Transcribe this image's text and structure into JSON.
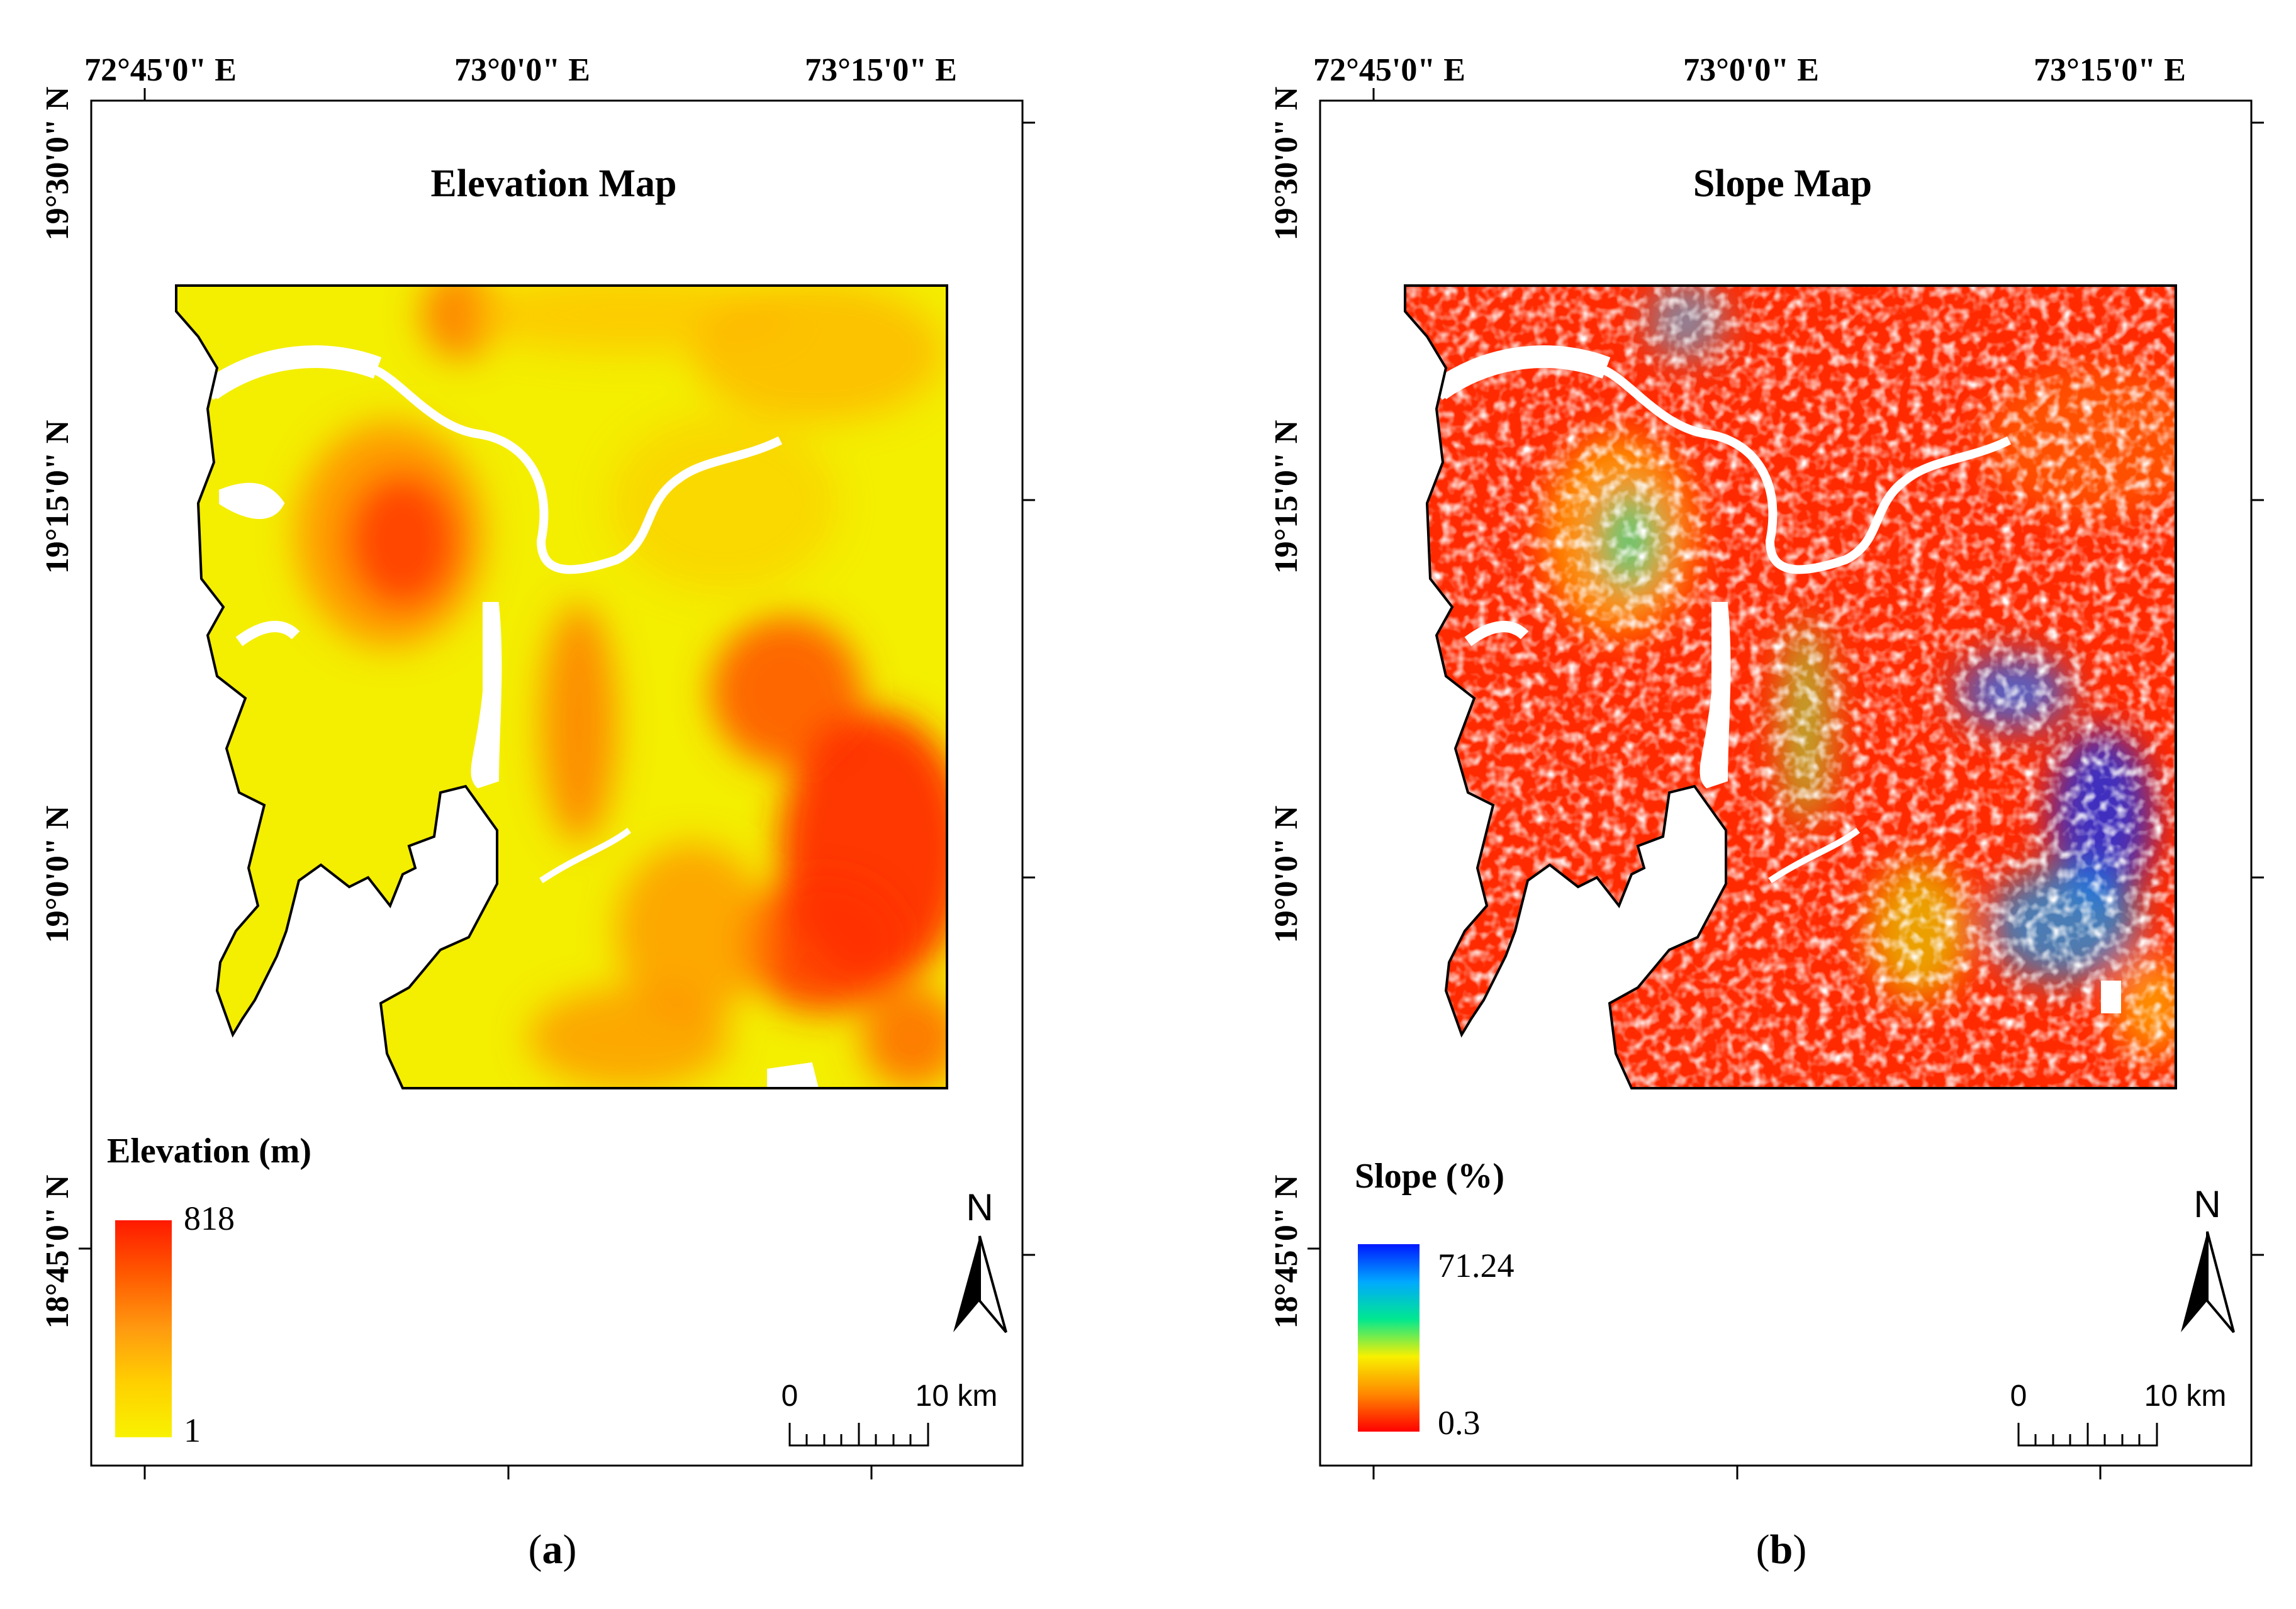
{
  "panels": [
    {
      "id": "a",
      "title": "Elevation Map",
      "caption_letter": "a",
      "longitude_labels": [
        "72°45'0\" E",
        "73°0'0\" E",
        "73°15'0\" E"
      ],
      "latitude_labels": [
        "19°30'0\" N",
        "19°15'0\" N",
        "19°0'0\" N",
        "18°45'0\" N"
      ],
      "legend": {
        "title": "Elevation (m)",
        "max_label": "818",
        "min_label": "1",
        "max_value": 818,
        "min_value": 1,
        "colors": [
          "#ff1a00",
          "#ff5a00",
          "#ff9a10",
          "#ffd000",
          "#f8f200"
        ]
      },
      "north_label": "N",
      "scale": {
        "start_label": "0",
        "end_label": "10 km"
      }
    },
    {
      "id": "b",
      "title": "Slope Map",
      "caption_letter": "b",
      "longitude_labels": [
        "72°45'0\" E",
        "73°0'0\" E",
        "73°15'0\" E"
      ],
      "latitude_labels": [
        "19°30'0\" N",
        "19°15'0\" N",
        "19°0'0\" N",
        "18°45'0\" N"
      ],
      "legend": {
        "title": "Slope (%)",
        "max_label": "71.24",
        "min_label": "0.3",
        "max_value": 71.24,
        "min_value": 0.3,
        "colors": [
          "#0018ff",
          "#00a8ff",
          "#00e890",
          "#f8f000",
          "#ff8800",
          "#ff0000"
        ]
      },
      "north_label": "N",
      "scale": {
        "start_label": "0",
        "end_label": "10 km"
      }
    }
  ]
}
